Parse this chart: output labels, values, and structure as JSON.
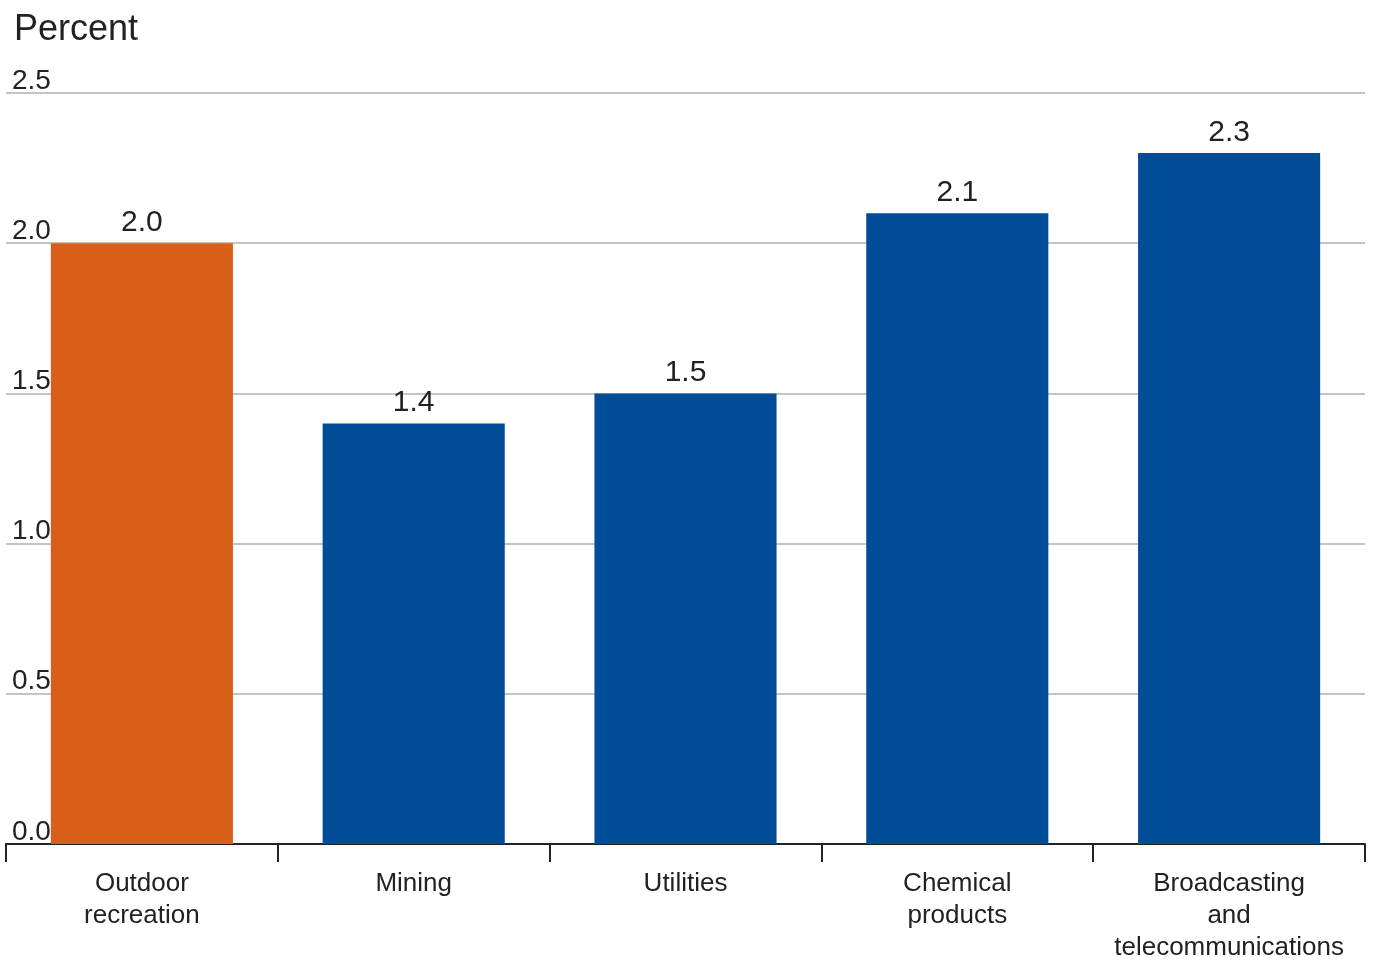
{
  "chart_data": {
    "type": "bar",
    "ylabel": "Percent",
    "categories": [
      "Outdoor recreation",
      "Mining",
      "Utilities",
      "Chemical products",
      "Broadcasting and telecommunications"
    ],
    "values": [
      2.0,
      1.4,
      1.5,
      2.1,
      2.3
    ],
    "value_labels": [
      "2.0",
      "1.4",
      "1.5",
      "2.1",
      "2.3"
    ],
    "colors": [
      "#d95f19",
      "#004c97",
      "#004c97",
      "#004c97",
      "#004c97"
    ],
    "ylim": [
      0,
      2.5
    ],
    "yticks": [
      {
        "value": 0,
        "label": "0.0"
      },
      {
        "value": 0.5,
        "label": "0.5"
      },
      {
        "value": 1,
        "label": "1.0"
      },
      {
        "value": 1.5,
        "label": "1.5"
      },
      {
        "value": 2,
        "label": "2.0"
      },
      {
        "value": 2.5,
        "label": "2.5"
      }
    ],
    "grid": "y"
  }
}
